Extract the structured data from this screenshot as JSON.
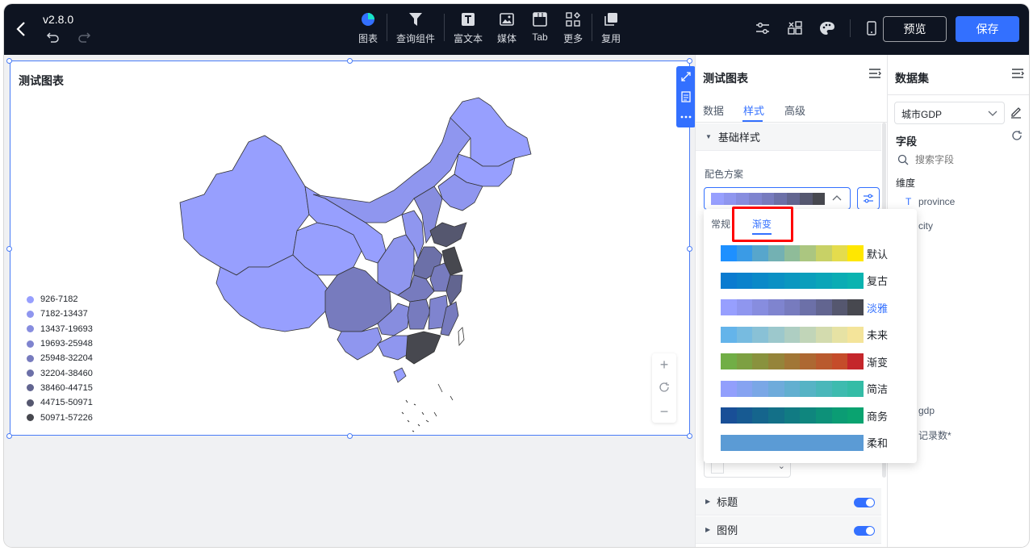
{
  "app": {
    "version": "v2.8.0"
  },
  "toolbar": {
    "items": [
      {
        "label": "图表",
        "icon": "pie-chart-icon"
      },
      {
        "label": "查询组件",
        "icon": "filter-icon"
      },
      {
        "label": "富文本",
        "icon": "text-icon"
      },
      {
        "label": "媒体",
        "icon": "image-icon"
      },
      {
        "label": "Tab",
        "icon": "tab-icon"
      },
      {
        "label": "更多",
        "icon": "more-grid-icon"
      },
      {
        "label": "复用",
        "icon": "copy-icon"
      }
    ],
    "preview_label": "预览",
    "save_label": "保存"
  },
  "chart": {
    "title": "测试图表",
    "legend": [
      {
        "label": "926-7182",
        "color": "#979ffe"
      },
      {
        "label": "7182-13437",
        "color": "#8f96ef"
      },
      {
        "label": "13437-19693",
        "color": "#878ddf"
      },
      {
        "label": "19693-25948",
        "color": "#7f84cf"
      },
      {
        "label": "25948-32204",
        "color": "#777bbe"
      },
      {
        "label": "32204-38460",
        "color": "#6c70a8"
      },
      {
        "label": "38460-44715",
        "color": "#626590"
      },
      {
        "label": "44715-50971",
        "color": "#55576f"
      },
      {
        "label": "50971-57226",
        "color": "#47484f"
      }
    ]
  },
  "style_panel": {
    "title": "测试图表",
    "tabs": [
      "数据",
      "样式",
      "高级"
    ],
    "active_tab": "样式",
    "sections": {
      "basic": "基础样式",
      "title": "标题",
      "legend": "图例"
    },
    "color_scheme_label": "配色方案",
    "selected_scheme_colors": [
      "#979ffe",
      "#8f96ef",
      "#878ddf",
      "#7f84cf",
      "#777bbe",
      "#6c70a8",
      "#626590",
      "#55576f",
      "#47484f"
    ]
  },
  "popup": {
    "tabs": [
      "常规",
      "渐变"
    ],
    "active_tab": "渐变",
    "schemes": [
      {
        "name": "默认",
        "colors": [
          "#1e90ff",
          "#3a9be6",
          "#57a6cc",
          "#73b1b3",
          "#8fbc99",
          "#abc680",
          "#c8d166",
          "#e4dc4d",
          "#ffe700"
        ]
      },
      {
        "name": "复古",
        "colors": [
          "#0a7bd0",
          "#0a82cc",
          "#0a89c8",
          "#0a90c4",
          "#0a97c0",
          "#0a9ebc",
          "#0aa5b8",
          "#0aacb4",
          "#0ab3b0"
        ]
      },
      {
        "name": "淡雅",
        "colors": [
          "#979ffe",
          "#8f96ef",
          "#878ddf",
          "#7f84cf",
          "#777bbe",
          "#6c70a8",
          "#626590",
          "#55576f",
          "#47484f"
        ],
        "selected": true
      },
      {
        "name": "未来",
        "colors": [
          "#64b4ea",
          "#77bbe0",
          "#89c1d6",
          "#9cc8cc",
          "#aecec2",
          "#c1d5b8",
          "#d3dbae",
          "#e6e2a4",
          "#f4e49a"
        ]
      },
      {
        "name": "渐变",
        "colors": [
          "#71ae46",
          "#7da042",
          "#89923e",
          "#95843a",
          "#a17636",
          "#ad6832",
          "#b95a2e",
          "#c54c2a",
          "#c4262b"
        ]
      },
      {
        "name": "简洁",
        "colors": [
          "#929ffc",
          "#86a3f1",
          "#7aa7e6",
          "#6eabdb",
          "#62afd0",
          "#56b3c5",
          "#4ab7ba",
          "#3ebbaf",
          "#34bca6"
        ]
      },
      {
        "name": "商务",
        "colors": [
          "#194f97",
          "#175a92",
          "#15658d",
          "#137088",
          "#117b83",
          "#0f867e",
          "#0d9179",
          "#0b9c74",
          "#0aa370"
        ]
      },
      {
        "name": "柔和",
        "colors": [
          "#5b9bd5",
          "#5b9bd5",
          "#5b9bd5",
          "#5b9bd5",
          "#5b9bd5",
          "#5b9bd5",
          "#5b9bd5",
          "#5b9bd5",
          "#5b9bd5"
        ]
      }
    ]
  },
  "dataset_panel": {
    "title": "数据集",
    "dataset": "城市GDP",
    "fields_label": "字段",
    "search_placeholder": "搜索字段",
    "dimension_label": "维度",
    "dimensions": [
      "province",
      "city"
    ],
    "measures": [
      "gdp",
      "记录数*"
    ]
  }
}
